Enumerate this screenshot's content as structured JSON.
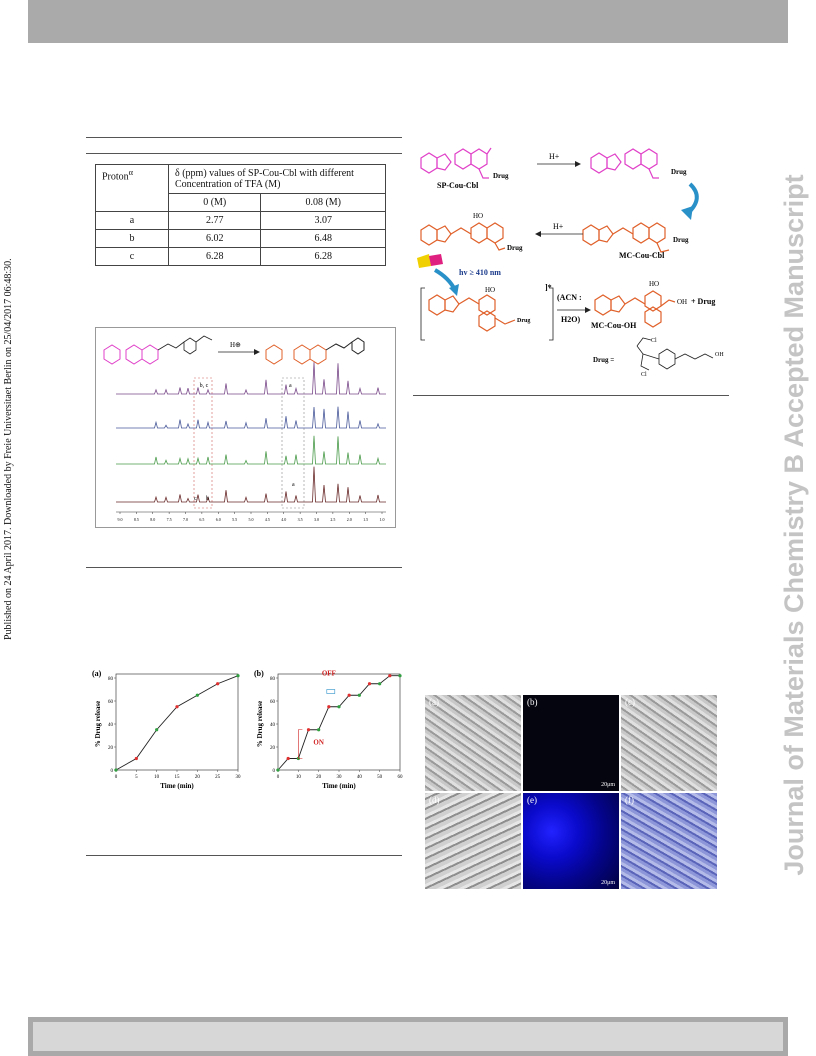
{
  "side_note": "Published on 24 April 2017. Downloaded by Freie Universitaet Berlin on 25/04/2017 06:48:30.",
  "watermark": "Journal of Materials Chemistry B Accepted Manuscript",
  "table": {
    "header_col1": "Proton",
    "header_col1_sup": "α",
    "header_col2_line1": "δ  (ppm) values of SP-Cou-Cbl with different",
    "header_col2_line2": "Concentration of TFA (M)",
    "sub_headers": [
      "0 (M)",
      "0.08 (M)"
    ],
    "rows": [
      {
        "proton": "a",
        "v0": "2.77",
        "v1": "3.07"
      },
      {
        "proton": "b",
        "v0": "6.02",
        "v1": "6.48"
      },
      {
        "proton": "c",
        "v0": "6.28",
        "v1": "6.28"
      }
    ]
  },
  "spectrum": {
    "reaction_label": "H⊕",
    "labels": [
      "b, c",
      "a",
      "a",
      "c",
      "b"
    ],
    "axis_ticks": [
      "9.0",
      "8.5",
      "8.0",
      "7.5",
      "7.0",
      "6.5",
      "6.0",
      "5.5",
      "5.0",
      "4.5",
      "4.0",
      "3.5",
      "3.0",
      "2.5",
      "2.0",
      "1.5",
      "1.0"
    ],
    "trace_colors": [
      "#7a4a8a",
      "#4a5a9a",
      "#4a9a4a",
      "#6a2a2a"
    ]
  },
  "scheme": {
    "sp_label": "SP-Cou-Cbl",
    "mc_label": "MC-Cou-Cbl",
    "mcoh_label": "MC-Cou-OH",
    "h_plus_1": "H+",
    "h_plus_2": "H+",
    "light": "hv ≥ 410 nm",
    "solvent_line1": "(ACN :",
    "solvent_line2": "H2O)",
    "drug_word": "Drug",
    "plus_drug": "+ Drug",
    "drug_eq": "Drug  =",
    "excited": "]*",
    "oh": "OH",
    "ho": "HO",
    "cl": "Cl",
    "colors": {
      "sp": "#e040c8",
      "mc": "#e0602a",
      "arrow": "#2a90c8"
    }
  },
  "chart_data": [
    {
      "type": "line",
      "panel_label": "(a)",
      "xlabel": "Time (min)",
      "ylabel": "% Drug release",
      "x": [
        0,
        5,
        10,
        15,
        20,
        25,
        30
      ],
      "y": [
        0,
        10,
        35,
        55,
        65,
        75,
        82
      ],
      "xlim": [
        0,
        30
      ],
      "ylim": [
        0,
        80
      ],
      "xticks": [
        "0",
        "5",
        "10",
        "15",
        "20",
        "25",
        "30"
      ],
      "yticks": [
        "0",
        "20",
        "40",
        "60",
        "80"
      ]
    },
    {
      "type": "line",
      "panel_label": "(b)",
      "xlabel": "Time (min)",
      "ylabel": "% Drug release",
      "x": [
        0,
        5,
        10,
        15,
        20,
        25,
        30,
        35,
        40,
        45,
        50,
        55,
        60
      ],
      "y": [
        0,
        10,
        10,
        35,
        35,
        55,
        55,
        65,
        65,
        75,
        75,
        82,
        82
      ],
      "xlim": [
        0,
        60
      ],
      "ylim": [
        0,
        80
      ],
      "xticks": [
        "0",
        "10",
        "20",
        "30",
        "40",
        "50",
        "60"
      ],
      "yticks": [
        "0",
        "20",
        "40",
        "60",
        "80"
      ],
      "annotations": [
        "OFF",
        "ON"
      ]
    }
  ],
  "micrographs": {
    "panels": [
      "(a)",
      "(b)",
      "(c)",
      "(d)",
      "(e)",
      "(f)"
    ],
    "scale": "20μm"
  }
}
